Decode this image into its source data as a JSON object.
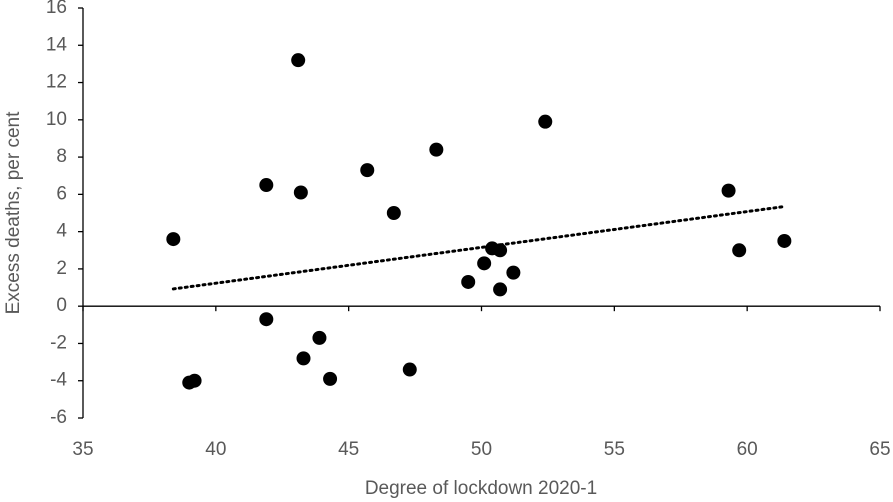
{
  "chart_data": {
    "type": "scatter",
    "x_label": "Degree of lockdown 2020-1",
    "y_label": "Excess deaths, per cent",
    "x": [
      38.4,
      39.0,
      39.2,
      43.1,
      41.9,
      43.2,
      41.9,
      43.3,
      43.9,
      44.3,
      45.7,
      46.7,
      47.3,
      48.3,
      49.5,
      50.1,
      50.4,
      50.7,
      50.7,
      51.2,
      52.4,
      59.3,
      59.7,
      61.4
    ],
    "series": [
      {
        "color": "#000000",
        "values": [
          3.6,
          -4.1,
          -4.0,
          13.2,
          6.5,
          6.1,
          -0.7,
          -2.8,
          -1.7,
          -3.9,
          7.3,
          5.0,
          -3.4,
          8.4,
          1.3,
          2.3,
          3.1,
          3.0,
          0.9,
          1.8,
          9.9,
          6.2,
          3.0,
          3.5
        ]
      }
    ],
    "trendline": true,
    "xlim": [
      35,
      65
    ],
    "xticks": [
      35,
      40,
      45,
      50,
      55,
      60,
      65
    ],
    "ylim": [
      -6,
      16
    ],
    "yticks": [
      -6,
      -4,
      -2,
      0,
      2,
      4,
      6,
      8,
      10,
      12,
      14,
      16
    ]
  }
}
